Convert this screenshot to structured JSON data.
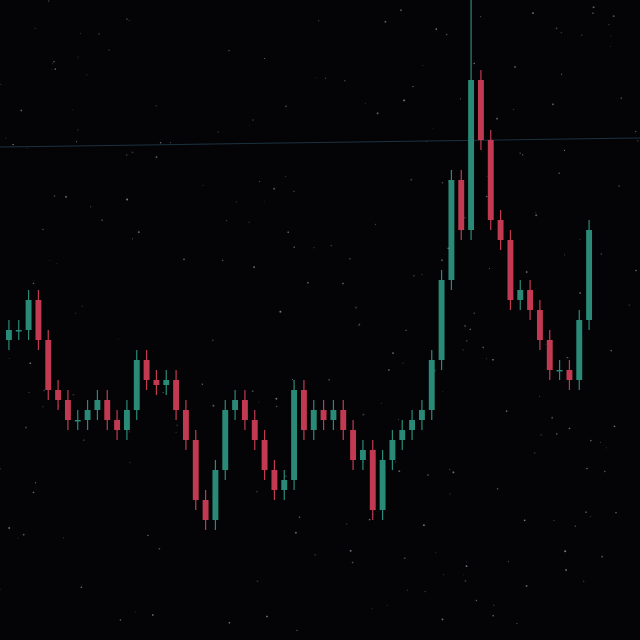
{
  "chart_data": {
    "type": "candlestick",
    "open": [
      300,
      310,
      310,
      340,
      300,
      250,
      240,
      220,
      220,
      230,
      240,
      220,
      210,
      230,
      280,
      260,
      255,
      260,
      230,
      200,
      140,
      120,
      170,
      230,
      240,
      220,
      200,
      170,
      150,
      160,
      250,
      210,
      230,
      220,
      230,
      210,
      180,
      190,
      130,
      180,
      200,
      210,
      220,
      230,
      280,
      360,
      460,
      410,
      560,
      500,
      420,
      400,
      340,
      350,
      330,
      300,
      270,
      270,
      260,
      320
    ],
    "high": [
      320,
      320,
      350,
      350,
      310,
      260,
      250,
      230,
      240,
      250,
      250,
      230,
      240,
      290,
      290,
      270,
      270,
      270,
      240,
      210,
      150,
      180,
      240,
      250,
      250,
      230,
      210,
      180,
      170,
      260,
      260,
      240,
      240,
      240,
      240,
      220,
      200,
      200,
      190,
      210,
      220,
      230,
      240,
      290,
      370,
      470,
      470,
      640,
      570,
      510,
      430,
      410,
      360,
      360,
      340,
      310,
      280,
      280,
      330,
      420
    ],
    "low": [
      290,
      300,
      300,
      290,
      240,
      230,
      210,
      210,
      210,
      220,
      210,
      200,
      200,
      220,
      250,
      245,
      245,
      220,
      190,
      130,
      110,
      110,
      160,
      220,
      210,
      190,
      160,
      140,
      140,
      150,
      200,
      200,
      210,
      210,
      200,
      170,
      170,
      120,
      120,
      170,
      190,
      200,
      210,
      220,
      270,
      350,
      400,
      400,
      490,
      410,
      390,
      330,
      330,
      320,
      290,
      260,
      260,
      250,
      250,
      310
    ],
    "close": [
      310,
      310,
      340,
      300,
      250,
      240,
      220,
      220,
      230,
      240,
      220,
      210,
      230,
      280,
      260,
      255,
      260,
      230,
      200,
      140,
      120,
      170,
      230,
      240,
      220,
      200,
      170,
      150,
      160,
      250,
      210,
      230,
      220,
      230,
      210,
      180,
      190,
      130,
      180,
      200,
      210,
      220,
      230,
      280,
      360,
      460,
      410,
      560,
      500,
      420,
      400,
      340,
      350,
      330,
      300,
      270,
      270,
      260,
      320,
      410
    ],
    "up_color": "#2a8a78",
    "down_color": "#c23a52",
    "ylim": [
      0,
      640
    ]
  }
}
